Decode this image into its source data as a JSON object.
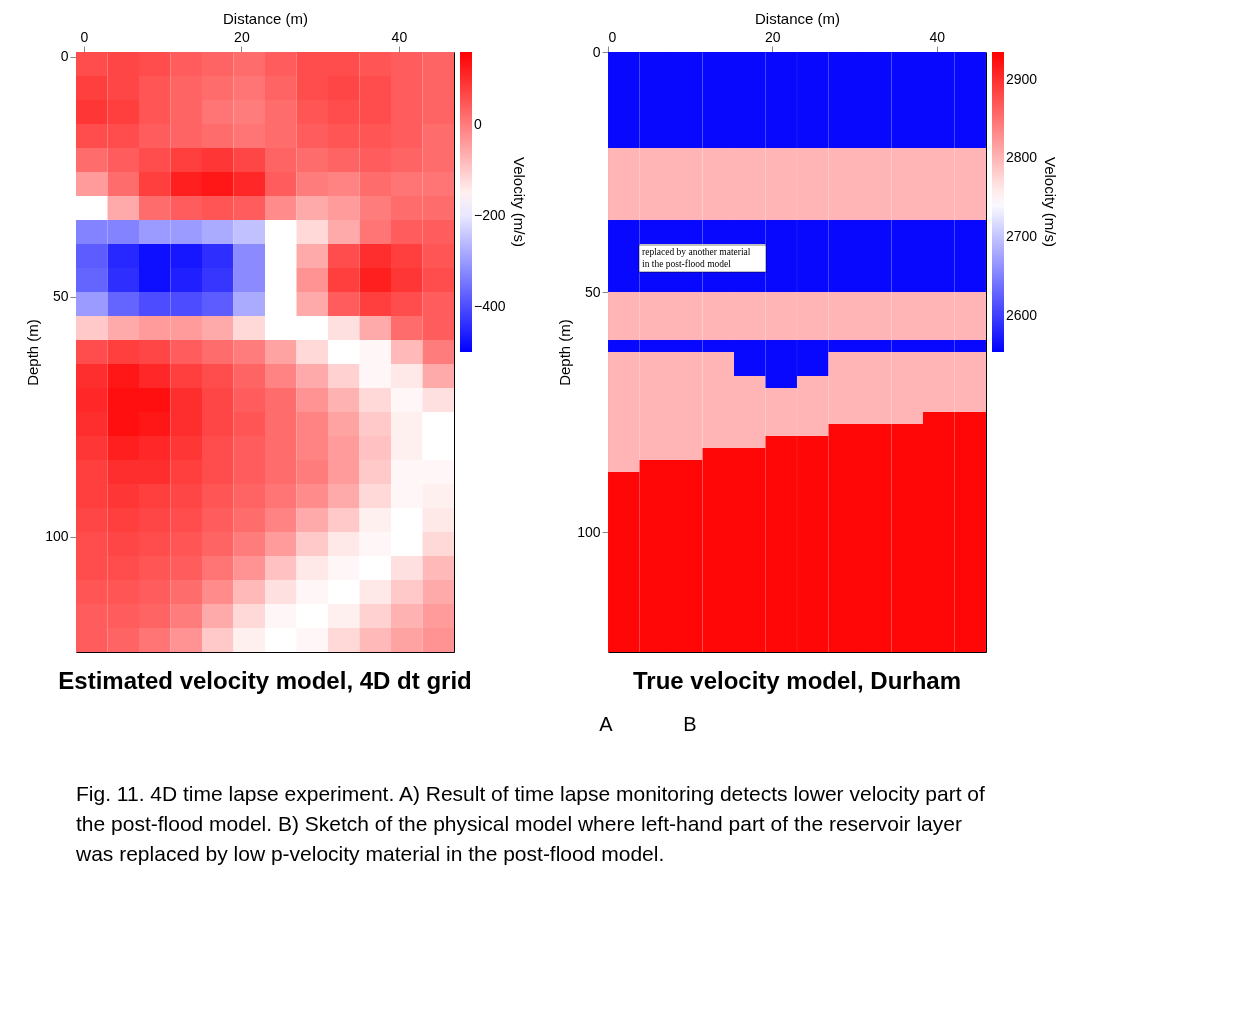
{
  "chart_data": [
    {
      "type": "heatmap",
      "title": "Estimated velocity model, 4D dt grid",
      "xlabel": "Distance (m)",
      "ylabel": "Depth (m)",
      "clabel": "Velocity (m/s)",
      "x": [
        1,
        5,
        9,
        13,
        17,
        21,
        25,
        29,
        33,
        37,
        41,
        45
      ],
      "y": [
        1.5,
        6.5,
        11.5,
        16.5,
        21.5,
        26.5,
        31.5,
        36.5,
        41.5,
        46.5,
        51.5,
        56.5,
        61.5,
        66.5,
        71.5,
        76.5,
        81.5,
        86.5,
        91.5,
        96.5,
        101.5,
        106.5,
        111.5,
        116.5,
        121.5
      ],
      "xlim": [
        -1,
        47
      ],
      "ylim": [
        124,
        -1
      ],
      "xticks": [
        0,
        20,
        40
      ],
      "yticks": [
        0,
        50,
        100
      ],
      "clim": [
        -500,
        160
      ],
      "cticks": [
        0,
        -200,
        -400
      ],
      "cells": [
        [
          60,
          70,
          60,
          40,
          30,
          20,
          40,
          60,
          60,
          50,
          40,
          30
        ],
        [
          80,
          70,
          50,
          30,
          20,
          10,
          30,
          60,
          70,
          60,
          40,
          30
        ],
        [
          90,
          80,
          50,
          30,
          10,
          0,
          20,
          50,
          60,
          60,
          40,
          30
        ],
        [
          60,
          60,
          40,
          30,
          20,
          10,
          20,
          40,
          50,
          50,
          40,
          20
        ],
        [
          20,
          40,
          60,
          80,
          90,
          70,
          30,
          20,
          30,
          40,
          30,
          20
        ],
        [
          -40,
          20,
          80,
          120,
          130,
          110,
          40,
          0,
          -10,
          20,
          10,
          10
        ],
        [
          -170,
          -60,
          20,
          40,
          50,
          40,
          -20,
          -60,
          -40,
          0,
          20,
          20
        ],
        [
          -330,
          -330,
          -300,
          -300,
          -280,
          -250,
          -170,
          -120,
          -60,
          10,
          40,
          40
        ],
        [
          -380,
          -450,
          -480,
          -470,
          -440,
          -320,
          -170,
          -60,
          60,
          100,
          80,
          50
        ],
        [
          -370,
          -440,
          -480,
          -460,
          -430,
          -320,
          -170,
          -30,
          80,
          120,
          90,
          60
        ],
        [
          -300,
          -370,
          -400,
          -400,
          -380,
          -280,
          -170,
          -60,
          40,
          80,
          60,
          40
        ],
        [
          -100,
          -60,
          -40,
          -40,
          -60,
          -120,
          -170,
          -170,
          -130,
          -60,
          20,
          40
        ],
        [
          60,
          80,
          70,
          40,
          20,
          0,
          -50,
          -120,
          -170,
          -160,
          -80,
          0
        ],
        [
          100,
          130,
          110,
          80,
          60,
          30,
          -10,
          -60,
          -110,
          -160,
          -140,
          -60
        ],
        [
          110,
          140,
          140,
          100,
          70,
          40,
          20,
          -30,
          -70,
          -120,
          -160,
          -130
        ],
        [
          100,
          140,
          130,
          100,
          70,
          50,
          20,
          -10,
          -50,
          -100,
          -150,
          -170
        ],
        [
          90,
          120,
          110,
          90,
          60,
          40,
          20,
          -10,
          -40,
          -90,
          -150,
          -170
        ],
        [
          80,
          100,
          100,
          80,
          60,
          40,
          20,
          0,
          -40,
          -100,
          -160,
          -160
        ],
        [
          80,
          90,
          80,
          70,
          50,
          30,
          10,
          -20,
          -60,
          -120,
          -160,
          -150
        ],
        [
          70,
          80,
          70,
          60,
          40,
          20,
          -10,
          -60,
          -100,
          -150,
          -170,
          -140
        ],
        [
          60,
          70,
          60,
          50,
          30,
          0,
          -40,
          -100,
          -140,
          -160,
          -170,
          -120
        ],
        [
          60,
          60,
          50,
          40,
          10,
          -30,
          -90,
          -140,
          -160,
          -170,
          -130,
          -80
        ],
        [
          50,
          50,
          40,
          20,
          -20,
          -80,
          -130,
          -160,
          -170,
          -140,
          -100,
          -60
        ],
        [
          40,
          40,
          30,
          0,
          -60,
          -120,
          -160,
          -170,
          -150,
          -110,
          -70,
          -40
        ],
        [
          40,
          30,
          10,
          -30,
          -100,
          -150,
          -170,
          -160,
          -120,
          -80,
          -50,
          -30
        ]
      ],
      "annotations": [
        "A",
        "Fig. 11. 4D time lapse experiment. A) Result of time lapse monitoring detects lower velocity part of the post-flood model. B) Sketch of the physical model where left-hand part of the reservoir layer was replaced by low p-velocity material in the post-flood model."
      ]
    },
    {
      "type": "heatmap",
      "title": "True velocity model, Durham",
      "xlabel": "Distance (m)",
      "ylabel": "Depth (m)",
      "clabel": "Velocity (m/s)",
      "x": [
        1.92,
        5.75,
        9.58,
        13.42,
        17.25,
        21.08,
        24.92,
        28.75,
        32.58,
        36.42,
        40.25,
        44.08
      ],
      "y": [
        1.25,
        3.75,
        6.25,
        8.75,
        11.25,
        13.75,
        16.25,
        18.75,
        21.25,
        23.75,
        26.25,
        28.75,
        31.25,
        33.75,
        36.25,
        38.75,
        41.25,
        43.75,
        46.25,
        48.75,
        51.25,
        53.75,
        56.25,
        58.75,
        61.25,
        63.75,
        66.25,
        68.75,
        71.25,
        73.75,
        76.25,
        78.75,
        81.25,
        83.75,
        86.25,
        88.75,
        91.25,
        93.75,
        96.25,
        98.75,
        101.25,
        103.75,
        106.25,
        108.75,
        111.25,
        113.75,
        116.25,
        118.75,
        121.25,
        123.75
      ],
      "xlim": [
        0,
        46
      ],
      "ylim": [
        125,
        0
      ],
      "xticks": [
        0,
        20,
        40
      ],
      "yticks": [
        0,
        50,
        100
      ],
      "clim": [
        2554,
        2935
      ],
      "cticks": [
        2900,
        2800,
        2700,
        2600
      ],
      "cells": [
        [
          2560,
          2560,
          2560,
          2560,
          2560,
          2560,
          2560,
          2560,
          2560,
          2560,
          2560,
          2560
        ],
        [
          2560,
          2560,
          2560,
          2560,
          2560,
          2560,
          2560,
          2560,
          2560,
          2560,
          2560,
          2560
        ],
        [
          2560,
          2560,
          2560,
          2560,
          2560,
          2560,
          2560,
          2560,
          2560,
          2560,
          2560,
          2560
        ],
        [
          2560,
          2560,
          2560,
          2560,
          2560,
          2560,
          2560,
          2560,
          2560,
          2560,
          2560,
          2560
        ],
        [
          2560,
          2560,
          2560,
          2560,
          2560,
          2560,
          2560,
          2560,
          2560,
          2560,
          2560,
          2560
        ],
        [
          2560,
          2560,
          2560,
          2560,
          2560,
          2560,
          2560,
          2560,
          2560,
          2560,
          2560,
          2560
        ],
        [
          2560,
          2560,
          2560,
          2560,
          2560,
          2560,
          2560,
          2560,
          2560,
          2560,
          2560,
          2560
        ],
        [
          2560,
          2560,
          2560,
          2560,
          2560,
          2560,
          2560,
          2560,
          2560,
          2560,
          2560,
          2560
        ],
        [
          2800,
          2800,
          2800,
          2800,
          2800,
          2800,
          2800,
          2800,
          2800,
          2800,
          2800,
          2800
        ],
        [
          2800,
          2800,
          2800,
          2800,
          2800,
          2800,
          2800,
          2800,
          2800,
          2800,
          2800,
          2800
        ],
        [
          2800,
          2800,
          2800,
          2800,
          2800,
          2800,
          2800,
          2800,
          2800,
          2800,
          2800,
          2800
        ],
        [
          2800,
          2800,
          2800,
          2800,
          2800,
          2800,
          2800,
          2800,
          2800,
          2800,
          2800,
          2800
        ],
        [
          2800,
          2800,
          2800,
          2800,
          2800,
          2800,
          2800,
          2800,
          2800,
          2800,
          2800,
          2800
        ],
        [
          2800,
          2800,
          2800,
          2800,
          2800,
          2800,
          2800,
          2800,
          2800,
          2800,
          2800,
          2800
        ],
        [
          2560,
          2560,
          2560,
          2560,
          2560,
          2560,
          2560,
          2560,
          2560,
          2560,
          2560,
          2560
        ],
        [
          2560,
          2560,
          2560,
          2560,
          2560,
          2560,
          2560,
          2560,
          2560,
          2560,
          2560,
          2560
        ],
        [
          2560,
          null,
          null,
          null,
          null,
          2560,
          2560,
          2560,
          2560,
          2560,
          2560,
          2560
        ],
        [
          2560,
          null,
          null,
          null,
          null,
          2560,
          2560,
          2560,
          2560,
          2560,
          2560,
          2560
        ],
        [
          2560,
          2560,
          2560,
          2560,
          2560,
          2560,
          2560,
          2560,
          2560,
          2560,
          2560,
          2560
        ],
        [
          2560,
          2560,
          2560,
          2560,
          2560,
          2560,
          2560,
          2560,
          2560,
          2560,
          2560,
          2560
        ],
        [
          2800,
          2800,
          2800,
          2800,
          2800,
          2800,
          2800,
          2800,
          2800,
          2800,
          2800,
          2800
        ],
        [
          2800,
          2800,
          2800,
          2800,
          2800,
          2800,
          2800,
          2800,
          2800,
          2800,
          2800,
          2800
        ],
        [
          2800,
          2800,
          2800,
          2800,
          2800,
          2800,
          2800,
          2800,
          2800,
          2800,
          2800,
          2800
        ],
        [
          2800,
          2800,
          2800,
          2800,
          2800,
          2800,
          2800,
          2800,
          2800,
          2800,
          2800,
          2800
        ],
        [
          2560,
          2560,
          2560,
          2560,
          2560,
          2560,
          2560,
          2560,
          2560,
          2560,
          2560,
          2560
        ],
        [
          2800,
          2800,
          2800,
          2800,
          2560,
          2560,
          2560,
          2800,
          2800,
          2800,
          2800,
          2800
        ],
        [
          2800,
          2800,
          2800,
          2800,
          2560,
          2560,
          2560,
          2800,
          2800,
          2800,
          2800,
          2800
        ],
        [
          2800,
          2800,
          2800,
          2800,
          2800,
          2560,
          2800,
          2800,
          2800,
          2800,
          2800,
          2800
        ],
        [
          2800,
          2800,
          2800,
          2800,
          2800,
          2800,
          2800,
          2800,
          2800,
          2800,
          2800,
          2800
        ],
        [
          2800,
          2800,
          2800,
          2800,
          2800,
          2800,
          2800,
          2800,
          2800,
          2800,
          2800,
          2800
        ],
        [
          2800,
          2800,
          2800,
          2800,
          2800,
          2800,
          2800,
          2800,
          2800,
          2800,
          2930,
          2930
        ],
        [
          2800,
          2800,
          2800,
          2800,
          2800,
          2800,
          2800,
          2930,
          2930,
          2930,
          2930,
          2930
        ],
        [
          2800,
          2800,
          2800,
          2800,
          2800,
          2930,
          2930,
          2930,
          2930,
          2930,
          2930,
          2930
        ],
        [
          2800,
          2800,
          2800,
          2930,
          2930,
          2930,
          2930,
          2930,
          2930,
          2930,
          2930,
          2930
        ],
        [
          2800,
          2930,
          2930,
          2930,
          2930,
          2930,
          2930,
          2930,
          2930,
          2930,
          2930,
          2930
        ],
        [
          2930,
          2930,
          2930,
          2930,
          2930,
          2930,
          2930,
          2930,
          2930,
          2930,
          2930,
          2930
        ],
        [
          2930,
          2930,
          2930,
          2930,
          2930,
          2930,
          2930,
          2930,
          2930,
          2930,
          2930,
          2930
        ],
        [
          2930,
          2930,
          2930,
          2930,
          2930,
          2930,
          2930,
          2930,
          2930,
          2930,
          2930,
          2930
        ],
        [
          2930,
          2930,
          2930,
          2930,
          2930,
          2930,
          2930,
          2930,
          2930,
          2930,
          2930,
          2930
        ],
        [
          2930,
          2930,
          2930,
          2930,
          2930,
          2930,
          2930,
          2930,
          2930,
          2930,
          2930,
          2930
        ],
        [
          2930,
          2930,
          2930,
          2930,
          2930,
          2930,
          2930,
          2930,
          2930,
          2930,
          2930,
          2930
        ],
        [
          2930,
          2930,
          2930,
          2930,
          2930,
          2930,
          2930,
          2930,
          2930,
          2930,
          2930,
          2930
        ],
        [
          2930,
          2930,
          2930,
          2930,
          2930,
          2930,
          2930,
          2930,
          2930,
          2930,
          2930,
          2930
        ],
        [
          2930,
          2930,
          2930,
          2930,
          2930,
          2930,
          2930,
          2930,
          2930,
          2930,
          2930,
          2930
        ],
        [
          2930,
          2930,
          2930,
          2930,
          2930,
          2930,
          2930,
          2930,
          2930,
          2930,
          2930,
          2930
        ],
        [
          2930,
          2930,
          2930,
          2930,
          2930,
          2930,
          2930,
          2930,
          2930,
          2930,
          2930,
          2930
        ],
        [
          2930,
          2930,
          2930,
          2930,
          2930,
          2930,
          2930,
          2930,
          2930,
          2930,
          2930,
          2930
        ],
        [
          2930,
          2930,
          2930,
          2930,
          2930,
          2930,
          2930,
          2930,
          2930,
          2930,
          2930,
          2930
        ],
        [
          2930,
          2930,
          2930,
          2930,
          2930,
          2930,
          2930,
          2930,
          2930,
          2930,
          2930,
          2930
        ],
        [
          2930,
          2930,
          2930,
          2930,
          2930,
          2930,
          2930,
          2930,
          2930,
          2930,
          2930,
          2930
        ]
      ],
      "annotations": [
        "B",
        "replaced by another material in the post-flood model"
      ]
    }
  ]
}
